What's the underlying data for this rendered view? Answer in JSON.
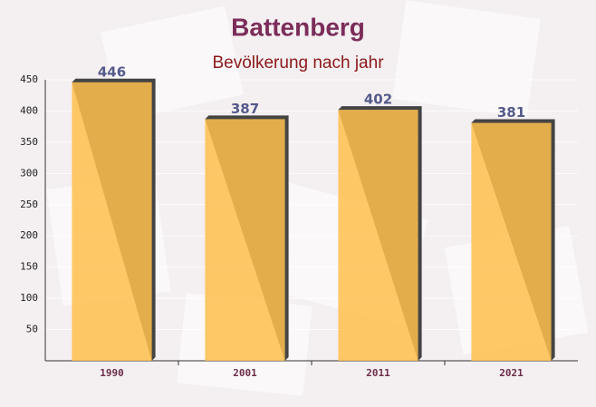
{
  "chart_data": {
    "type": "bar",
    "title": "Battenberg",
    "subtitle": "Bevölkerung nach jahr",
    "categories": [
      "1990",
      "2001",
      "2011",
      "2021"
    ],
    "values": [
      446,
      387,
      402,
      381
    ],
    "color": "#ffc04d",
    "ylim": [
      0,
      450
    ],
    "yticks": [
      50,
      100,
      150,
      200,
      250,
      300,
      350,
      400,
      450
    ],
    "grid": true
  }
}
